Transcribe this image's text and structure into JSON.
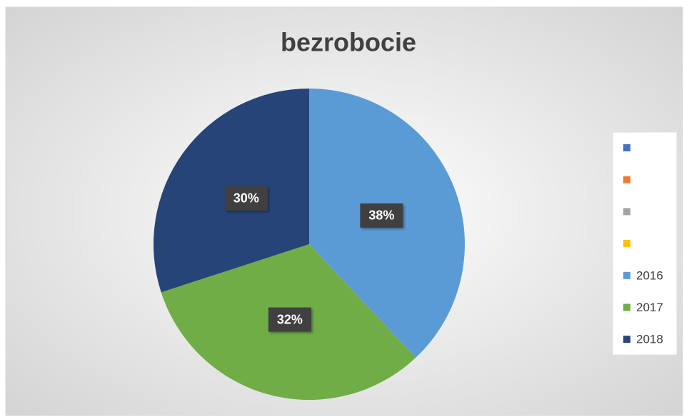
{
  "chart_data": {
    "type": "pie",
    "title": "bezrobocie",
    "categories": [
      null,
      null,
      null,
      null,
      "2016",
      "2017",
      "2018"
    ],
    "values": [
      0,
      0,
      0,
      0,
      38,
      32,
      30
    ],
    "value_labels": [
      null,
      null,
      null,
      null,
      "38%",
      "32%",
      "30%"
    ],
    "colors": [
      "#4472c4",
      "#ed7d31",
      "#a5a5a5",
      "#ffc000",
      "#5b9bd5",
      "#70ad47",
      "#264478"
    ],
    "legend": "right"
  }
}
